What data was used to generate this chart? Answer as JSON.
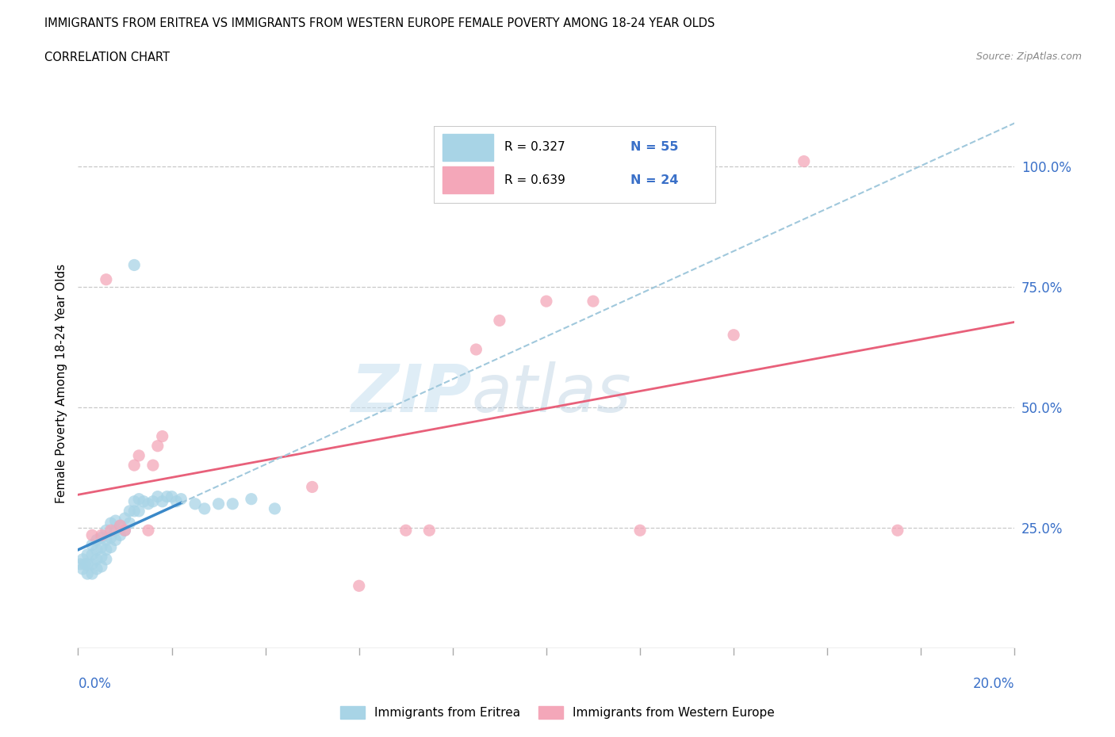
{
  "title_line1": "IMMIGRANTS FROM ERITREA VS IMMIGRANTS FROM WESTERN EUROPE FEMALE POVERTY AMONG 18-24 YEAR OLDS",
  "title_line2": "CORRELATION CHART",
  "source": "Source: ZipAtlas.com",
  "ylabel": "Female Poverty Among 18-24 Year Olds",
  "ytick_labels": [
    "25.0%",
    "50.0%",
    "75.0%",
    "100.0%"
  ],
  "ytick_values": [
    0.25,
    0.5,
    0.75,
    1.0
  ],
  "xlim": [
    0.0,
    0.2
  ],
  "ylim": [
    0.0,
    1.1
  ],
  "legend_eritrea": "Immigrants from Eritrea",
  "legend_western": "Immigrants from Western Europe",
  "R_eritrea": 0.327,
  "N_eritrea": 55,
  "R_western": 0.639,
  "N_western": 24,
  "color_eritrea": "#a8d4e6",
  "color_western": "#f4a7b9",
  "color_eritrea_line": "#3a88c8",
  "color_western_line": "#e8607a",
  "color_eritrea_dash": "#a0c8dc",
  "eritrea_x": [
    0.0005,
    0.001,
    0.001,
    0.0015,
    0.002,
    0.002,
    0.002,
    0.003,
    0.003,
    0.003,
    0.003,
    0.004,
    0.004,
    0.004,
    0.004,
    0.005,
    0.005,
    0.005,
    0.005,
    0.006,
    0.006,
    0.006,
    0.006,
    0.007,
    0.007,
    0.007,
    0.008,
    0.008,
    0.008,
    0.009,
    0.009,
    0.01,
    0.01,
    0.011,
    0.011,
    0.012,
    0.012,
    0.013,
    0.013,
    0.014,
    0.015,
    0.016,
    0.017,
    0.018,
    0.019,
    0.02,
    0.021,
    0.022,
    0.025,
    0.027,
    0.03,
    0.033,
    0.037,
    0.042,
    0.012
  ],
  "eritrea_y": [
    0.175,
    0.165,
    0.185,
    0.175,
    0.155,
    0.175,
    0.195,
    0.155,
    0.175,
    0.195,
    0.215,
    0.165,
    0.185,
    0.205,
    0.225,
    0.17,
    0.19,
    0.21,
    0.23,
    0.185,
    0.205,
    0.225,
    0.245,
    0.21,
    0.23,
    0.26,
    0.225,
    0.245,
    0.265,
    0.235,
    0.255,
    0.245,
    0.27,
    0.26,
    0.285,
    0.285,
    0.305,
    0.285,
    0.31,
    0.305,
    0.3,
    0.305,
    0.315,
    0.305,
    0.315,
    0.315,
    0.305,
    0.31,
    0.3,
    0.29,
    0.3,
    0.3,
    0.31,
    0.29,
    0.795
  ],
  "western_x": [
    0.003,
    0.005,
    0.006,
    0.007,
    0.009,
    0.01,
    0.012,
    0.013,
    0.015,
    0.016,
    0.017,
    0.018,
    0.05,
    0.06,
    0.07,
    0.075,
    0.085,
    0.09,
    0.1,
    0.11,
    0.12,
    0.14,
    0.155,
    0.175
  ],
  "western_y": [
    0.235,
    0.235,
    0.765,
    0.245,
    0.255,
    0.245,
    0.38,
    0.4,
    0.245,
    0.38,
    0.42,
    0.44,
    0.335,
    0.13,
    0.245,
    0.245,
    0.62,
    0.68,
    0.72,
    0.72,
    0.245,
    0.65,
    1.01,
    0.245
  ]
}
